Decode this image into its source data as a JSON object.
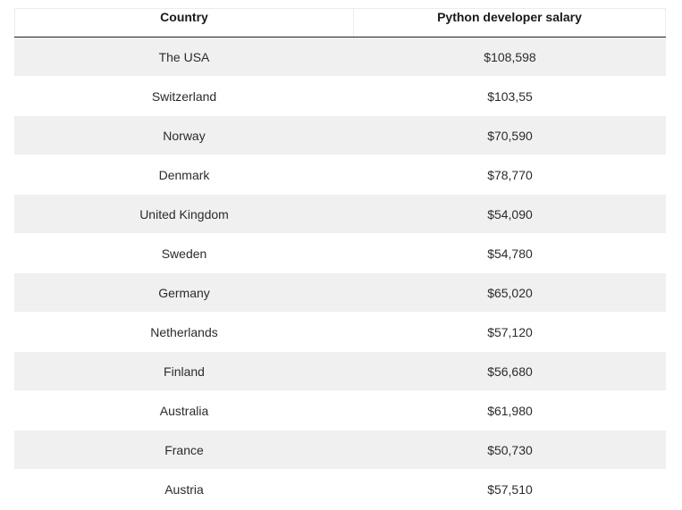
{
  "table": {
    "headers": {
      "country": "Country",
      "salary": "Python developer salary"
    },
    "rows": [
      {
        "country": "The USA",
        "salary": "$108,598"
      },
      {
        "country": "Switzerland",
        "salary": "$103,55"
      },
      {
        "country": "Norway",
        "salary": "$70,590"
      },
      {
        "country": "Denmark",
        "salary": "$78,770"
      },
      {
        "country": "United Kingdom",
        "salary": "$54,090"
      },
      {
        "country": "Sweden",
        "salary": "$54,780"
      },
      {
        "country": "Germany",
        "salary": "$65,020"
      },
      {
        "country": "Netherlands",
        "salary": "$57,120"
      },
      {
        "country": "Finland",
        "salary": "$56,680"
      },
      {
        "country": "Australia",
        "salary": "$61,980"
      },
      {
        "country": "France",
        "salary": "$50,730"
      },
      {
        "country": "Austria",
        "salary": "$57,510"
      }
    ]
  }
}
